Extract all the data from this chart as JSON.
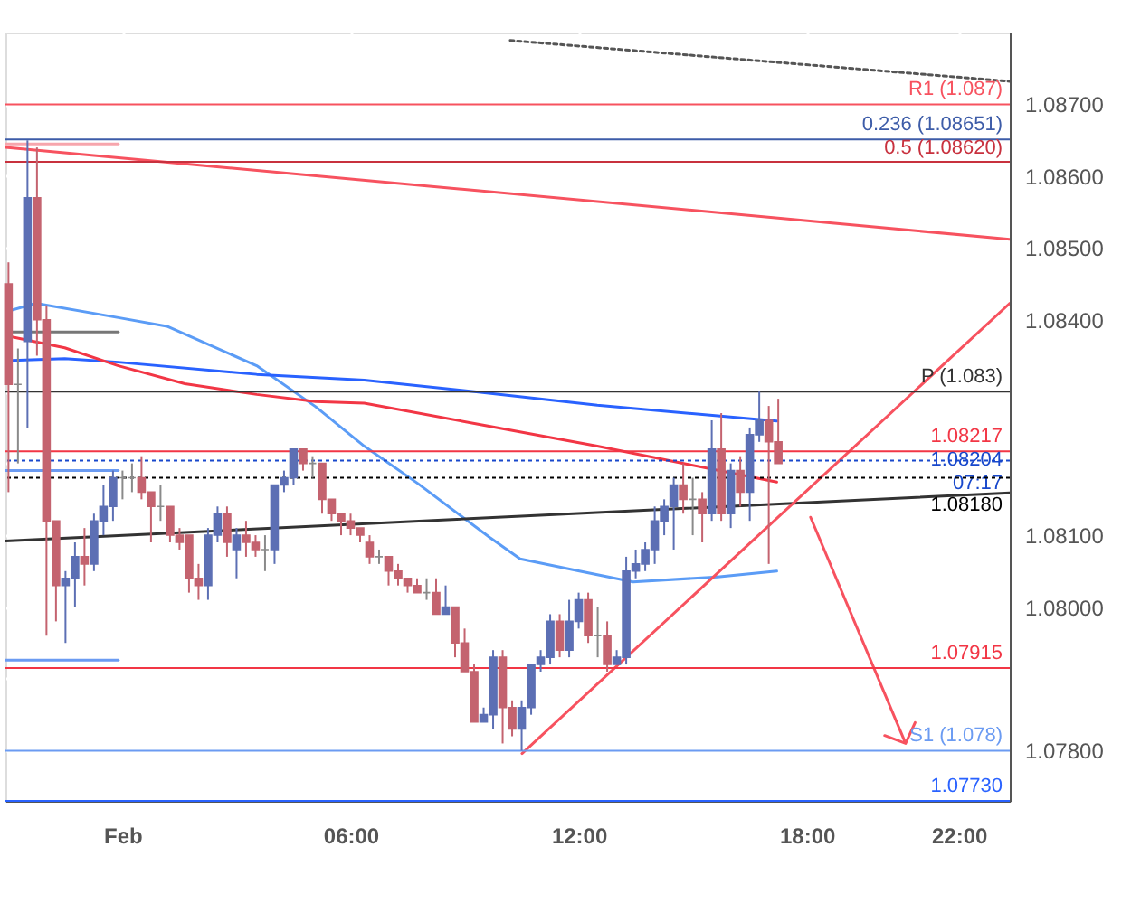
{
  "chart_data": {
    "type": "candlestick",
    "x": [
      -3,
      -2.75,
      -2.5,
      -2.25,
      -2,
      -1.75,
      -1.5,
      -1.25,
      -1,
      -0.75,
      -0.5,
      -0.25,
      0,
      0.25,
      0.5,
      0.75,
      1,
      1.25,
      1.5,
      1.75,
      2,
      2.25,
      2.5,
      2.75,
      3,
      3.25,
      3.5,
      3.75,
      4,
      4.25,
      4.5,
      4.75,
      5,
      5.25,
      5.5,
      5.75,
      6,
      6.25,
      6.5,
      6.75,
      7,
      7.25,
      7.5,
      7.75,
      8,
      8.25,
      8.5,
      8.75,
      9,
      9.25,
      9.5,
      9.75,
      10,
      10.25,
      10.5,
      10.75,
      11,
      11.25,
      11.5,
      11.75,
      12,
      12.25,
      12.5,
      12.75,
      13,
      13.25,
      13.5,
      13.75,
      14,
      14.25,
      14.5,
      14.75,
      15,
      15.25,
      15.5,
      15.75,
      16,
      16.25,
      16.5,
      16.75,
      17,
      17.25
    ],
    "ohlc": [
      [
        1.0845,
        1.0848,
        1.0816,
        1.0831
      ],
      [
        1.0831,
        1.0836,
        1.082,
        1.0831
      ],
      [
        1.0837,
        1.0865,
        1.0825,
        1.0857
      ],
      [
        1.0857,
        1.0864,
        1.0835,
        1.084
      ],
      [
        1.084,
        1.0842,
        1.0796,
        1.0812
      ],
      [
        1.0812,
        1.0812,
        1.0798,
        1.0803
      ],
      [
        1.0803,
        1.0805,
        1.0795,
        1.0804
      ],
      [
        1.0804,
        1.0809,
        1.08,
        1.0807
      ],
      [
        1.0807,
        1.0811,
        1.0803,
        1.0806
      ],
      [
        1.0806,
        1.0813,
        1.0805,
        1.0812
      ],
      [
        1.0812,
        1.0817,
        1.081,
        1.0814
      ],
      [
        1.0814,
        1.0819,
        1.0812,
        1.0818
      ],
      [
        1.0818,
        1.0819,
        1.0815,
        1.0818
      ],
      [
        1.0818,
        1.082,
        1.0816,
        1.0818
      ],
      [
        1.0818,
        1.0821,
        1.0815,
        1.0816
      ],
      [
        1.0816,
        1.0816,
        1.0809,
        1.0814
      ],
      [
        1.0814,
        1.0817,
        1.0812,
        1.0814
      ],
      [
        1.0814,
        1.0814,
        1.0809,
        1.081
      ],
      [
        1.081,
        1.0811,
        1.0808,
        1.0809
      ],
      [
        1.081,
        1.081,
        1.0802,
        1.0804
      ],
      [
        1.0804,
        1.0806,
        1.0801,
        1.0803
      ],
      [
        1.0803,
        1.0811,
        1.0801,
        1.081
      ],
      [
        1.081,
        1.0814,
        1.0809,
        1.0813
      ],
      [
        1.0813,
        1.0814,
        1.0807,
        1.0809
      ],
      [
        1.0808,
        1.0811,
        1.0804,
        1.081
      ],
      [
        1.081,
        1.0812,
        1.0807,
        1.0809
      ],
      [
        1.0809,
        1.081,
        1.0807,
        1.0808
      ],
      [
        1.0808,
        1.081,
        1.0805,
        1.0808
      ],
      [
        1.0808,
        1.0817,
        1.0806,
        1.0817
      ],
      [
        1.0817,
        1.0819,
        1.0816,
        1.0818
      ],
      [
        1.0818,
        1.0822,
        1.0817,
        1.0822
      ],
      [
        1.0822,
        1.0822,
        1.0819,
        1.082
      ],
      [
        1.082,
        1.0821,
        1.0818,
        1.082
      ],
      [
        1.082,
        1.082,
        1.0813,
        1.0815
      ],
      [
        1.0815,
        1.0815,
        1.0812,
        1.0813
      ],
      [
        1.0813,
        1.0813,
        1.081,
        1.0812
      ],
      [
        1.0812,
        1.0813,
        1.081,
        1.0811
      ],
      [
        1.0811,
        1.0811,
        1.0809,
        1.081
      ],
      [
        1.0809,
        1.081,
        1.0806,
        1.0807
      ],
      [
        1.0807,
        1.0808,
        1.0806,
        1.0807
      ],
      [
        1.0807,
        1.0807,
        1.0803,
        1.0805
      ],
      [
        1.0805,
        1.0806,
        1.0803,
        1.0804
      ],
      [
        1.0804,
        1.0804,
        1.0802,
        1.0803
      ],
      [
        1.0803,
        1.0804,
        1.0802,
        1.0802
      ],
      [
        1.0802,
        1.0804,
        1.0801,
        1.0802
      ],
      [
        1.0802,
        1.0804,
        1.0799,
        1.0799
      ],
      [
        1.0799,
        1.0803,
        1.0799,
        1.08
      ],
      [
        1.08,
        1.08,
        1.0793,
        1.0795
      ],
      [
        1.0795,
        1.0797,
        1.0791,
        1.0791
      ],
      [
        1.0791,
        1.0792,
        1.0784,
        1.0784
      ],
      [
        1.0784,
        1.0786,
        1.0784,
        1.0785
      ],
      [
        1.0785,
        1.0794,
        1.0783,
        1.0793
      ],
      [
        1.0793,
        1.0794,
        1.0781,
        1.0786
      ],
      [
        1.0786,
        1.0787,
        1.0782,
        1.0783
      ],
      [
        1.0783,
        1.0787,
        1.078,
        1.0786
      ],
      [
        1.0786,
        1.0792,
        1.0785,
        1.0792
      ],
      [
        1.0792,
        1.0794,
        1.0791,
        1.0793
      ],
      [
        1.0793,
        1.0799,
        1.0792,
        1.0798
      ],
      [
        1.0798,
        1.0799,
        1.0793,
        1.0794
      ],
      [
        1.0794,
        1.0801,
        1.0793,
        1.0798
      ],
      [
        1.0798,
        1.0802,
        1.0797,
        1.0801
      ],
      [
        1.0801,
        1.0802,
        1.0795,
        1.0796
      ],
      [
        1.0796,
        1.08,
        1.0793,
        1.0796
      ],
      [
        1.0796,
        1.0798,
        1.0791,
        1.0792
      ],
      [
        1.0792,
        1.0794,
        1.0792,
        1.0793
      ],
      [
        1.0793,
        1.0807,
        1.0792,
        1.0805
      ],
      [
        1.0805,
        1.0808,
        1.0804,
        1.0806
      ],
      [
        1.0806,
        1.0809,
        1.0805,
        1.0808
      ],
      [
        1.0808,
        1.0814,
        1.0806,
        1.0812
      ],
      [
        1.0812,
        1.0815,
        1.081,
        1.0814
      ],
      [
        1.0814,
        1.0818,
        1.0808,
        1.0817
      ],
      [
        1.0817,
        1.082,
        1.0813,
        1.0815
      ],
      [
        1.0815,
        1.0818,
        1.081,
        1.0815
      ],
      [
        1.0815,
        1.0816,
        1.0809,
        1.0813
      ],
      [
        1.0813,
        1.0826,
        1.0812,
        1.0822
      ],
      [
        1.0822,
        1.0827,
        1.0812,
        1.0813
      ],
      [
        1.0813,
        1.082,
        1.0811,
        1.0819
      ],
      [
        1.0819,
        1.0821,
        1.0814,
        1.0816
      ],
      [
        1.0816,
        1.0825,
        1.0812,
        1.0824
      ],
      [
        1.0824,
        1.083,
        1.0823,
        1.0826
      ],
      [
        1.0826,
        1.0828,
        1.0806,
        1.0823
      ],
      [
        1.0823,
        1.0829,
        1.082,
        1.082
      ]
    ],
    "colors": [
      "#c4636f",
      "#8a8a8a",
      "#5c6fb4",
      "#c4636f",
      "#c4636f",
      "#c4636f",
      "#5c6fb4",
      "#5c6fb4",
      "#c4636f",
      "#5c6fb4",
      "#5c6fb4",
      "#5c6fb4",
      "#8a8a8a",
      "#8a8a8a",
      "#c4636f",
      "#c4636f",
      "#8a8a8a",
      "#c4636f",
      "#c4636f",
      "#c4636f",
      "#c4636f",
      "#5c6fb4",
      "#5c6fb4",
      "#c4636f",
      "#5c6fb4",
      "#c4636f",
      "#c4636f",
      "#8a8a8a",
      "#5c6fb4",
      "#5c6fb4",
      "#5c6fb4",
      "#c4636f",
      "#8a8a8a",
      "#c4636f",
      "#c4636f",
      "#c4636f",
      "#c4636f",
      "#c4636f",
      "#c4636f",
      "#8a8a8a",
      "#c4636f",
      "#c4636f",
      "#c4636f",
      "#c4636f",
      "#8a8a8a",
      "#c4636f",
      "#5c6fb4",
      "#c4636f",
      "#c4636f",
      "#c4636f",
      "#5c6fb4",
      "#5c6fb4",
      "#c4636f",
      "#c4636f",
      "#5c6fb4",
      "#5c6fb4",
      "#5c6fb4",
      "#5c6fb4",
      "#c4636f",
      "#5c6fb4",
      "#5c6fb4",
      "#c4636f",
      "#8a8a8a",
      "#c4636f",
      "#5c6fb4",
      "#5c6fb4",
      "#5c6fb4",
      "#5c6fb4",
      "#5c6fb4",
      "#5c6fb4",
      "#5c6fb4",
      "#c4636f",
      "#8a8a8a",
      "#c4636f",
      "#5c6fb4",
      "#c4636f",
      "#5c6fb4",
      "#c4636f",
      "#5c6fb4",
      "#5c6fb4",
      "#c4636f",
      "#c4636f"
    ],
    "series": [
      {
        "type": "line",
        "color": "#5b9cf6",
        "x": [
          -3.08,
          -2.28,
          -0.11,
          1.17,
          3.53,
          5.08,
          6.36,
          7.77,
          9.66,
          10.46,
          12.02,
          13.43,
          15.65,
          17.21
        ],
        "values": [
          1.08411,
          1.08423,
          1.08403,
          1.08391,
          1.08336,
          1.08279,
          1.08224,
          1.08172,
          1.08097,
          1.08067,
          1.0805,
          1.08035,
          1.08042,
          1.0805
        ]
      },
      {
        "type": "line",
        "color": "#2962ff",
        "x": [
          -3.08,
          -1.52,
          -0.11,
          3.53,
          6.36,
          9.42,
          12.49,
          17.21
        ],
        "values": [
          1.08343,
          1.08346,
          1.08341,
          1.08324,
          1.08316,
          1.08299,
          1.08281,
          1.08259
        ]
      },
      {
        "type": "line",
        "color": "#f23645",
        "x": [
          -3.08,
          -1.52,
          -0.11,
          1.64,
          3.53,
          5.08,
          6.36,
          9.42,
          12.49,
          14.85,
          17.21
        ],
        "values": [
          1.08378,
          1.08361,
          1.08336,
          1.08311,
          1.08296,
          1.08286,
          1.08284,
          1.08254,
          1.08224,
          1.08199,
          1.08174
        ]
      },
      {
        "type": "line",
        "color": "#f7525f",
        "x": [
          -3.08,
          23.34
        ],
        "values": [
          1.0864,
          1.08512
        ]
      },
      {
        "type": "line",
        "color": "#333333",
        "x": [
          -3.08,
          23.34
        ],
        "values": [
          1.08092,
          1.08159
        ]
      },
      {
        "type": "line",
        "color": "#f7525f",
        "x": [
          10.51,
          23.34
        ],
        "values": [
          1.07796,
          1.08423
        ]
      },
      {
        "type": "line",
        "color": "#555555",
        "line_style": "dotted",
        "x": [
          10.2,
          23.34
        ],
        "values": [
          1.08789,
          1.08732
        ]
      },
      {
        "type": "line",
        "color": "#f7525f",
        "x": [
          18.1,
          20.6,
          20.05,
          20.6,
          20.85
        ],
        "values": [
          1.08125,
          1.0781,
          1.07821,
          1.0781,
          1.07839
        ]
      },
      {
        "type": "line",
        "color": "#f7a5ac",
        "x": [
          -3.08,
          -0.11
        ],
        "values": [
          1.08645,
          1.08645
        ]
      },
      {
        "type": "line",
        "color": "#777777",
        "x": [
          -3.08,
          -0.11
        ],
        "values": [
          1.08383,
          1.08383
        ]
      },
      {
        "type": "line",
        "color": "#6b9bf2",
        "x": [
          -3.08,
          -0.11
        ],
        "values": [
          1.0819,
          1.0819
        ]
      },
      {
        "type": "line",
        "color": "#6b9bf2",
        "x": [
          -3.08,
          -0.11
        ],
        "values": [
          1.07926,
          1.07926
        ]
      }
    ],
    "ref_lines": [
      {
        "axis": "y",
        "value": 1.087,
        "label": "R1 (1.087)",
        "color": "#f7525f"
      },
      {
        "axis": "y",
        "value": 1.08651,
        "label": "0.236 (1.08651)",
        "color": "#3d5ca8"
      },
      {
        "axis": "y",
        "value": 1.0862,
        "label": "0.5 (1.08620)",
        "color": "#c8313e"
      },
      {
        "axis": "y",
        "value": 1.083,
        "label": "P (1.083)",
        "color": "#333333"
      },
      {
        "axis": "y",
        "value": 1.08217,
        "label": "1.08217",
        "color": "#f23645"
      },
      {
        "axis": "y",
        "value": 1.08204,
        "label": "1.08204\n07:17",
        "color": "#1848cc",
        "line_style": "dotted"
      },
      {
        "axis": "y",
        "value": 1.0818,
        "label": "1.08180",
        "color": "#000000",
        "line_style": "dotted"
      },
      {
        "axis": "y",
        "value": 1.07915,
        "label": "1.07915",
        "color": "#f23645"
      },
      {
        "axis": "y",
        "value": 1.078,
        "label": "S1 (1.078)",
        "color": "#6b9bf2"
      },
      {
        "axis": "y",
        "value": 1.0773,
        "label": "1.07730",
        "color": "#2962ff"
      }
    ],
    "xlim": [
      -3.08,
      23.34
    ],
    "ylim": [
      1.0773,
      1.088
    ],
    "xticks": [
      {
        "value": 0,
        "label": "Feb"
      },
      {
        "value": 6,
        "label": "06:00"
      },
      {
        "value": 12,
        "label": "12:00"
      },
      {
        "value": 18,
        "label": "18:00"
      },
      {
        "value": 22,
        "label": "22:00"
      }
    ],
    "yticks": [
      {
        "value": 1.078,
        "label": "1.07800"
      },
      {
        "value": 1.079,
        "label": null
      },
      {
        "value": 1.08,
        "label": "1.08000"
      },
      {
        "value": 1.081,
        "label": "1.08100"
      },
      {
        "value": 1.082,
        "label": null
      },
      {
        "value": 1.083,
        "label": null
      },
      {
        "value": 1.084,
        "label": "1.08400"
      },
      {
        "value": 1.085,
        "label": "1.08500"
      },
      {
        "value": 1.086,
        "label": "1.08600"
      },
      {
        "value": 1.087,
        "label": "1.08700"
      }
    ],
    "grid": true
  }
}
